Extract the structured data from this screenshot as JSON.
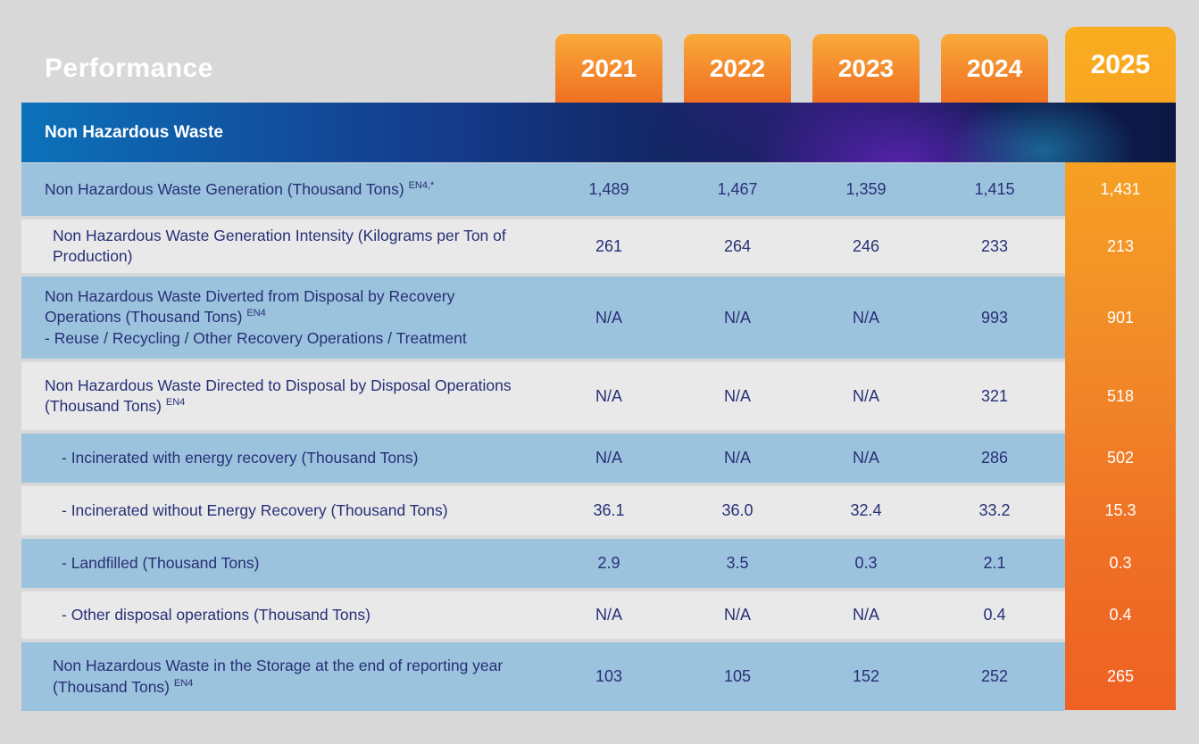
{
  "page": {
    "title": "Performance"
  },
  "section": {
    "title": "Non Hazardous Waste"
  },
  "years": [
    "2021",
    "2022",
    "2023",
    "2024",
    "2025"
  ],
  "rows": [
    {
      "label": "Non Hazardous Waste Generation (Thousand Tons)",
      "footnote": "EN4,*",
      "label_line2": "",
      "indent": 0,
      "values": [
        "1,489",
        "1,467",
        "1,359",
        "1,415",
        "1,431"
      ]
    },
    {
      "label": "Non Hazardous Waste Generation Intensity (Kilograms per Ton of Production)",
      "footnote": "",
      "label_line2": "",
      "indent": 1,
      "values": [
        "261",
        "264",
        "246",
        "233",
        "213"
      ]
    },
    {
      "label": "Non Hazardous Waste Diverted from Disposal by Recovery Operations (Thousand Tons)",
      "footnote": "EN4",
      "label_line2": "- Reuse / Recycling / Other Recovery Operations / Treatment",
      "indent": 0,
      "values": [
        "N/A",
        "N/A",
        "N/A",
        "993",
        "901"
      ]
    },
    {
      "label": "Non Hazardous Waste Directed to Disposal by Disposal Operations (Thousand Tons)",
      "footnote": "EN4",
      "label_line2": "",
      "indent": 0,
      "values": [
        "N/A",
        "N/A",
        "N/A",
        "321",
        "518"
      ]
    },
    {
      "label": "- Incinerated with energy recovery (Thousand Tons)",
      "footnote": "",
      "label_line2": "",
      "indent": 2,
      "values": [
        "N/A",
        "N/A",
        "N/A",
        "286",
        "502"
      ]
    },
    {
      "label": "- Incinerated without Energy Recovery (Thousand Tons)",
      "footnote": "",
      "label_line2": "",
      "indent": 2,
      "values": [
        "36.1",
        "36.0",
        "32.4",
        "33.2",
        "15.3"
      ]
    },
    {
      "label": "- Landfilled (Thousand Tons)",
      "footnote": "",
      "label_line2": "",
      "indent": 2,
      "values": [
        "2.9",
        "3.5",
        "0.3",
        "2.1",
        "0.3"
      ]
    },
    {
      "label": "- Other disposal operations (Thousand Tons)",
      "footnote": "",
      "label_line2": "",
      "indent": 2,
      "values": [
        "N/A",
        "N/A",
        "N/A",
        "0.4",
        "0.4"
      ]
    },
    {
      "label": "Non Hazardous Waste in the Storage at the end of reporting year (Thousand Tons)",
      "footnote": "EN4",
      "label_line2": "",
      "indent": 1,
      "values": [
        "103",
        "105",
        "152",
        "252",
        "265"
      ]
    }
  ],
  "colors": {
    "page_background": "#D8D8D8",
    "row_blue": "#9CC3DD",
    "row_gray": "#E9E9EA",
    "text_navy": "#272F76",
    "band_blue_left": "#0C72BA",
    "band_navy_right": "#0C1844",
    "band_purple_swirl": "#5823AF",
    "year_orange_top": "#FAAA3A",
    "year_orange_bottom": "#F07122",
    "col2025_top": "#FAAD1F",
    "col2025_bottom": "#EE6123",
    "text_white": "#FFFFFF"
  }
}
